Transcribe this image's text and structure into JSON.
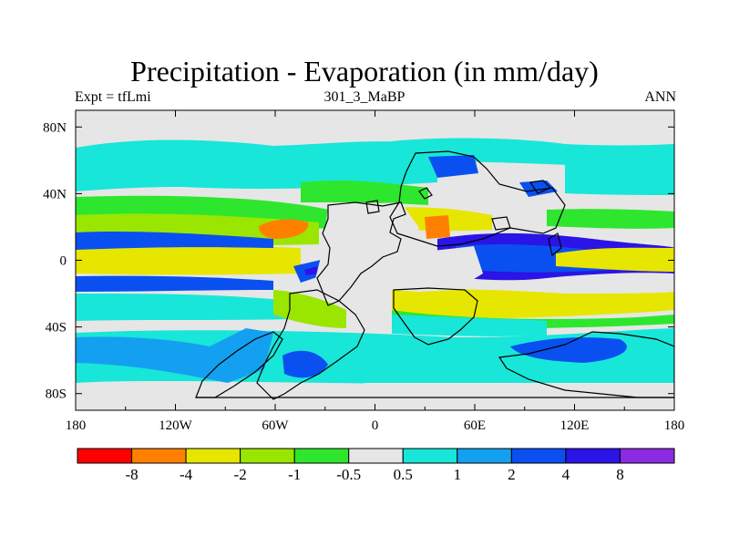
{
  "chart_data": {
    "type": "heatmap",
    "title": "Precipitation - Evaporation (in mm/day)",
    "subtitle_left": "Expt = tfLmi",
    "subtitle_center": "301_3_MaBP",
    "subtitle_right": "ANN",
    "x_ticks": [
      "180",
      "120W",
      "60W",
      "0",
      "60E",
      "120E",
      "180"
    ],
    "x_tick_values": [
      -180,
      -120,
      -60,
      0,
      60,
      120,
      180
    ],
    "y_ticks": [
      "80N",
      "40N",
      "0",
      "40S",
      "80S"
    ],
    "y_tick_values": [
      80,
      40,
      0,
      -40,
      -80
    ],
    "xlim": [
      -180,
      180
    ],
    "ylim": [
      -90,
      90
    ],
    "colorbar": {
      "colors": [
        "#ff0000",
        "#ff8000",
        "#e6e600",
        "#9ae600",
        "#2ee62e",
        "#e6e6e6",
        "#18e6d8",
        "#14a0f0",
        "#0a50f0",
        "#2a14e6",
        "#8a2be2"
      ],
      "labels": [
        "-8",
        "-4",
        "-2",
        "-1",
        "-0.5",
        "0.5",
        "1",
        "2",
        "4",
        "8"
      ]
    },
    "colors": {
      "background": "#e6e6e6",
      "cyan": "#18e6d8",
      "lightblue": "#14a0f0",
      "blue": "#0a50f0",
      "deepblue": "#2a14e6",
      "green": "#2ee62e",
      "lime": "#9ae600",
      "yellow": "#e6e600",
      "orange": "#ff8000",
      "coast": "#000000"
    }
  }
}
